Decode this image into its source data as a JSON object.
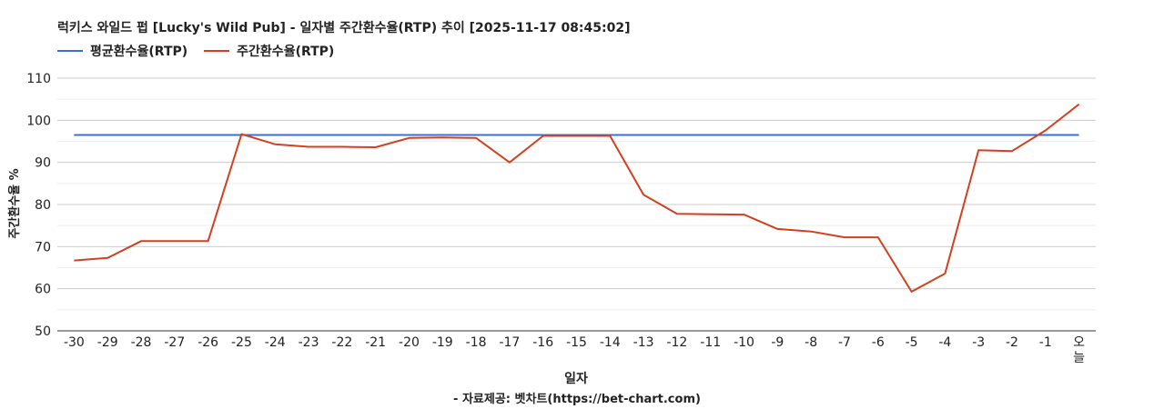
{
  "title": "럭키스 와일드 펍 [Lucky's Wild Pub] - 일자별 주간환수율(RTP) 추이 [2025-11-17 08:45:02]",
  "footer": "- 자료제공: 벳차트(https://bet-chart.com)",
  "colors": {
    "avg": "#3d6fd0",
    "weekly": "#d2401f",
    "grid": "#cccccc",
    "minor_grid": "#eeeeee",
    "axis": "#333333"
  },
  "chart_data": {
    "type": "line",
    "xlabel": "일자",
    "ylabel": "주간환수율 %",
    "ylim": [
      50,
      110
    ],
    "yticks": [
      50,
      60,
      70,
      80,
      90,
      100,
      110
    ],
    "grid": true,
    "legend_position": "top-left",
    "categories": [
      "-30",
      "-29",
      "-28",
      "-27",
      "-26",
      "-25",
      "-24",
      "-23",
      "-22",
      "-21",
      "-20",
      "-19",
      "-18",
      "-17",
      "-16",
      "-15",
      "-14",
      "-13",
      "-12",
      "-11",
      "-10",
      "-9",
      "-8",
      "-7",
      "-6",
      "-5",
      "-4",
      "-3",
      "-2",
      "-1",
      "오늘"
    ],
    "series": [
      {
        "name": "평균환수율(RTP)",
        "color": "#3d6fd0",
        "values": [
          96.5,
          96.5,
          96.5,
          96.5,
          96.5,
          96.5,
          96.5,
          96.5,
          96.5,
          96.5,
          96.5,
          96.5,
          96.5,
          96.5,
          96.5,
          96.5,
          96.5,
          96.5,
          96.5,
          96.5,
          96.5,
          96.5,
          96.5,
          96.5,
          96.5,
          96.5,
          96.5,
          96.5,
          96.5,
          96.5,
          96.5
        ]
      },
      {
        "name": "주간환수율(RTP)",
        "color": "#d2401f",
        "values": [
          66.7,
          67.3,
          71.3,
          71.3,
          71.3,
          96.7,
          94.3,
          93.7,
          93.7,
          93.6,
          95.8,
          95.9,
          95.8,
          90.0,
          96.3,
          96.3,
          96.3,
          82.3,
          77.8,
          77.7,
          77.6,
          74.2,
          73.6,
          72.2,
          72.2,
          59.3,
          63.6,
          92.9,
          92.7,
          97.6,
          103.8
        ]
      }
    ]
  }
}
